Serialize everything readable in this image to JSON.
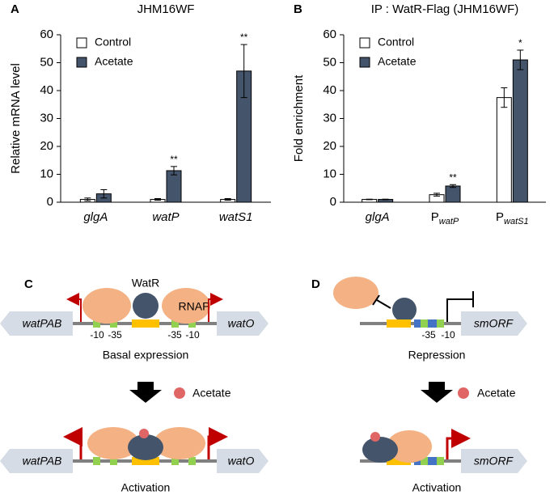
{
  "chart_data": [
    {
      "type": "bar",
      "label": "A",
      "title": "JHM16WF",
      "y_label": "Relative mRNA level",
      "categories": [
        "glgA",
        "watP",
        "watS1"
      ],
      "category_subscripts": [
        null,
        null,
        null
      ],
      "category_italic": [
        true,
        true,
        true
      ],
      "series": [
        {
          "name": "Control",
          "color": "#ffffff",
          "values": [
            1,
            1,
            1
          ],
          "errors": [
            0.5,
            0.3,
            0.3
          ]
        },
        {
          "name": "Acetate",
          "color": "#44546a",
          "values": [
            3,
            11.3,
            47
          ],
          "errors": [
            1.5,
            1.5,
            9.5
          ]
        }
      ],
      "significance": [
        null,
        "**",
        "**"
      ],
      "ylim": [
        0,
        60
      ],
      "yticks": [
        0,
        10,
        20,
        30,
        40,
        50,
        60
      ]
    },
    {
      "type": "bar",
      "label": "B",
      "title": "IP : WatR-Flag (JHM16WF)",
      "y_label": "Fold enrichment",
      "categories": [
        "glgA",
        "P",
        "P"
      ],
      "category_subscripts": [
        null,
        "watP",
        "watS1"
      ],
      "category_italic": [
        true,
        false,
        false
      ],
      "series": [
        {
          "name": "Control",
          "color": "#ffffff",
          "values": [
            1,
            2.7,
            37.5
          ],
          "errors": [
            0.1,
            0.5,
            3.5
          ]
        },
        {
          "name": "Acetate",
          "color": "#44546a",
          "values": [
            1,
            5.8,
            51
          ],
          "errors": [
            0.1,
            0.5,
            3.5
          ]
        }
      ],
      "significance": [
        null,
        "**",
        "*"
      ],
      "ylim": [
        0,
        60
      ],
      "yticks": [
        0,
        10,
        20,
        30,
        40,
        50,
        60
      ]
    }
  ],
  "panel_c": {
    "label": "C",
    "watr": "WatR",
    "rnap": "RNAP",
    "gene_left": "watPAB",
    "gene_right": "watO",
    "boxes": [
      "-10",
      "-35",
      "-35",
      "-10"
    ],
    "state_top": "Basal expression",
    "signal": "Acetate",
    "gene_left_bottom": "watPAB",
    "gene_right_bottom": "watO",
    "state_bottom": "Activation"
  },
  "panel_d": {
    "label": "D",
    "gene": "smORF",
    "boxes": [
      "-35",
      "-10"
    ],
    "state_top": "Repression",
    "signal": "Acetate",
    "gene_bottom": "smORF",
    "state_bottom": "Activation"
  }
}
